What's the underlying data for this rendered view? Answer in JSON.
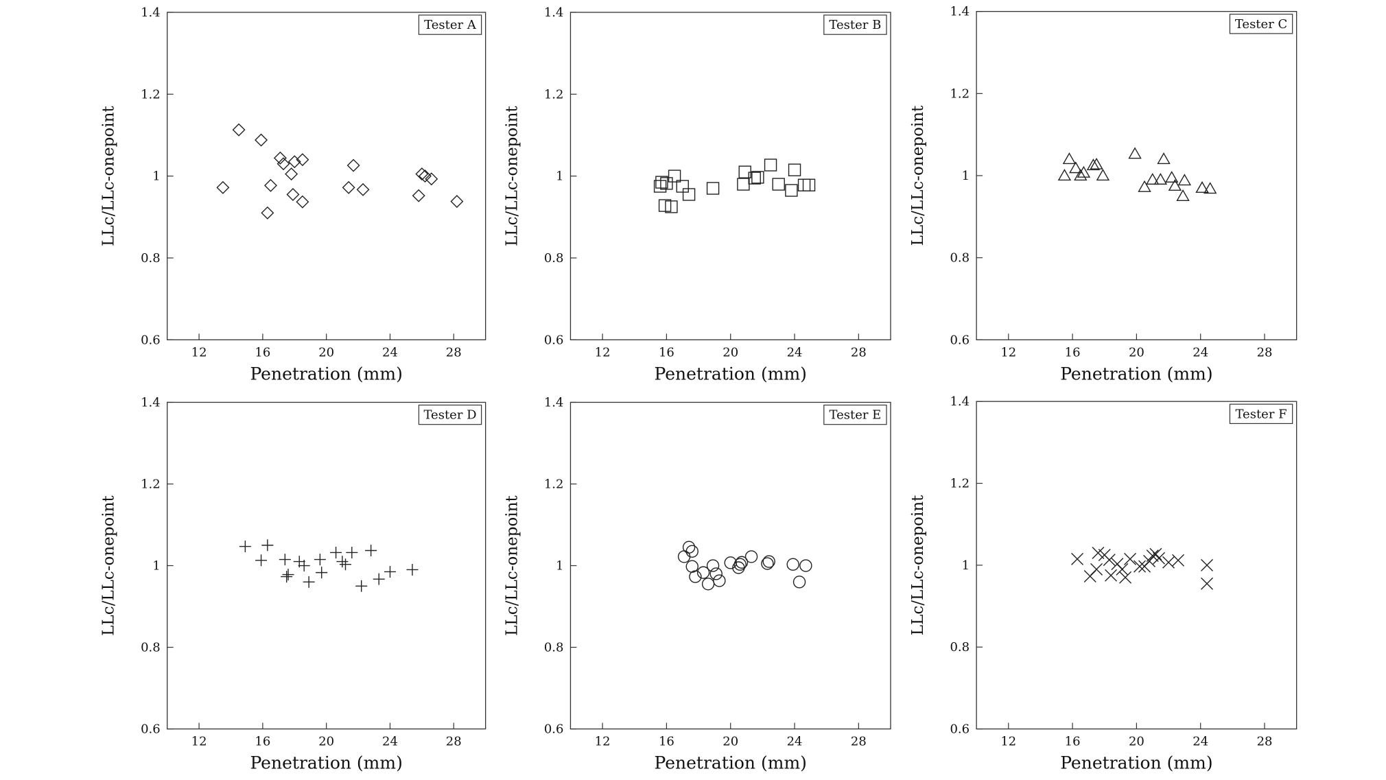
{
  "chart_data": [
    {
      "type": "scatter",
      "legend": "Tester A",
      "marker": "diamond",
      "xlabel": "Penetration (mm)",
      "ylabel": "LLc/LLc-onepoint",
      "xlim": [
        10,
        30
      ],
      "ylim": [
        0.6,
        1.4
      ],
      "xticks": [
        "12",
        "16",
        "20",
        "24",
        "28"
      ],
      "yticks": [
        "0.6",
        "0.8",
        "1",
        "1.2",
        "1.4"
      ],
      "points": [
        {
          "x": 13.5,
          "y": 0.972
        },
        {
          "x": 14.5,
          "y": 1.113
        },
        {
          "x": 15.9,
          "y": 1.088
        },
        {
          "x": 16.3,
          "y": 0.91
        },
        {
          "x": 16.5,
          "y": 0.977
        },
        {
          "x": 17.1,
          "y": 1.044
        },
        {
          "x": 17.3,
          "y": 1.03
        },
        {
          "x": 17.8,
          "y": 1.005
        },
        {
          "x": 17.9,
          "y": 0.955
        },
        {
          "x": 18.0,
          "y": 1.035
        },
        {
          "x": 18.5,
          "y": 1.04
        },
        {
          "x": 18.5,
          "y": 0.937
        },
        {
          "x": 21.4,
          "y": 0.972
        },
        {
          "x": 21.7,
          "y": 1.026
        },
        {
          "x": 22.3,
          "y": 0.967
        },
        {
          "x": 25.8,
          "y": 0.952
        },
        {
          "x": 26.0,
          "y": 1.005
        },
        {
          "x": 26.2,
          "y": 1.0
        },
        {
          "x": 26.6,
          "y": 0.993
        },
        {
          "x": 28.2,
          "y": 0.938
        }
      ]
    },
    {
      "type": "scatter",
      "legend": "Tester B",
      "marker": "square",
      "xlabel": "Penetration (mm)",
      "ylabel": "LLc/LLc-onepoint",
      "xlim": [
        10,
        30
      ],
      "ylim": [
        0.6,
        1.4
      ],
      "xticks": [
        "12",
        "16",
        "20",
        "24",
        "28"
      ],
      "yticks": [
        "0.6",
        "0.8",
        "1",
        "1.2",
        "1.4"
      ],
      "points": [
        {
          "x": 15.6,
          "y": 0.975
        },
        {
          "x": 15.7,
          "y": 0.985
        },
        {
          "x": 15.9,
          "y": 0.928
        },
        {
          "x": 16.0,
          "y": 0.982
        },
        {
          "x": 16.3,
          "y": 0.925
        },
        {
          "x": 16.5,
          "y": 1.0
        },
        {
          "x": 17.0,
          "y": 0.975
        },
        {
          "x": 17.4,
          "y": 0.955
        },
        {
          "x": 18.9,
          "y": 0.97
        },
        {
          "x": 20.8,
          "y": 0.98
        },
        {
          "x": 20.9,
          "y": 1.01
        },
        {
          "x": 21.5,
          "y": 0.995
        },
        {
          "x": 21.7,
          "y": 0.997
        },
        {
          "x": 22.5,
          "y": 1.027
        },
        {
          "x": 23.0,
          "y": 0.98
        },
        {
          "x": 23.8,
          "y": 0.965
        },
        {
          "x": 24.0,
          "y": 1.015
        },
        {
          "x": 24.6,
          "y": 0.978
        },
        {
          "x": 24.9,
          "y": 0.978
        }
      ]
    },
    {
      "type": "scatter",
      "legend": "Tester C",
      "marker": "triangle",
      "xlabel": "Penetration (mm)",
      "ylabel": "LLc/LLc-onepoint",
      "xlim": [
        10,
        30
      ],
      "ylim": [
        0.6,
        1.4
      ],
      "xticks": [
        "12",
        "16",
        "20",
        "24",
        "28"
      ],
      "yticks": [
        "0.6",
        "0.8",
        "1",
        "1.2",
        "1.4"
      ],
      "points": [
        {
          "x": 15.5,
          "y": 1.0
        },
        {
          "x": 15.8,
          "y": 1.04
        },
        {
          "x": 16.2,
          "y": 1.018
        },
        {
          "x": 16.5,
          "y": 1.0
        },
        {
          "x": 16.7,
          "y": 1.007
        },
        {
          "x": 17.3,
          "y": 1.025
        },
        {
          "x": 17.5,
          "y": 1.027
        },
        {
          "x": 17.9,
          "y": 1.0
        },
        {
          "x": 19.9,
          "y": 1.053
        },
        {
          "x": 20.5,
          "y": 0.972
        },
        {
          "x": 21.0,
          "y": 0.99
        },
        {
          "x": 21.5,
          "y": 0.99
        },
        {
          "x": 21.7,
          "y": 1.04
        },
        {
          "x": 22.2,
          "y": 0.995
        },
        {
          "x": 22.4,
          "y": 0.975
        },
        {
          "x": 22.9,
          "y": 0.95
        },
        {
          "x": 23.0,
          "y": 0.988
        },
        {
          "x": 24.1,
          "y": 0.97
        },
        {
          "x": 24.6,
          "y": 0.968
        }
      ]
    },
    {
      "type": "scatter",
      "legend": "Tester D",
      "marker": "plus",
      "xlabel": "Penetration (mm)",
      "ylabel": "LLc/LLc-onepoint",
      "xlim": [
        10,
        30
      ],
      "ylim": [
        0.6,
        1.4
      ],
      "xticks": [
        "12",
        "16",
        "20",
        "24",
        "28"
      ],
      "yticks": [
        "0.6",
        "0.8",
        "1",
        "1.2",
        "1.4"
      ],
      "points": [
        {
          "x": 14.9,
          "y": 1.047
        },
        {
          "x": 15.9,
          "y": 1.013
        },
        {
          "x": 16.3,
          "y": 1.05
        },
        {
          "x": 17.4,
          "y": 1.015
        },
        {
          "x": 17.5,
          "y": 0.973
        },
        {
          "x": 17.6,
          "y": 0.978
        },
        {
          "x": 18.3,
          "y": 1.01
        },
        {
          "x": 18.6,
          "y": 1.0
        },
        {
          "x": 18.9,
          "y": 0.96
        },
        {
          "x": 19.6,
          "y": 1.015
        },
        {
          "x": 19.7,
          "y": 0.983
        },
        {
          "x": 20.6,
          "y": 1.032
        },
        {
          "x": 21.0,
          "y": 1.01
        },
        {
          "x": 21.2,
          "y": 1.003
        },
        {
          "x": 21.6,
          "y": 1.032
        },
        {
          "x": 22.2,
          "y": 0.95
        },
        {
          "x": 22.8,
          "y": 1.037
        },
        {
          "x": 23.3,
          "y": 0.967
        },
        {
          "x": 24.0,
          "y": 0.985
        },
        {
          "x": 25.4,
          "y": 0.99
        }
      ]
    },
    {
      "type": "scatter",
      "legend": "Tester E",
      "marker": "circle",
      "xlabel": "Penetration (mm)",
      "ylabel": "LLc/LLc-onepoint",
      "xlim": [
        10,
        30
      ],
      "ylim": [
        0.6,
        1.4
      ],
      "xticks": [
        "12",
        "16",
        "20",
        "24",
        "28"
      ],
      "yticks": [
        "0.6",
        "0.8",
        "1",
        "1.2",
        "1.4"
      ],
      "points": [
        {
          "x": 17.1,
          "y": 1.022
        },
        {
          "x": 17.4,
          "y": 1.045
        },
        {
          "x": 17.6,
          "y": 1.035
        },
        {
          "x": 17.6,
          "y": 0.998
        },
        {
          "x": 17.8,
          "y": 0.973
        },
        {
          "x": 18.3,
          "y": 0.983
        },
        {
          "x": 18.6,
          "y": 0.955
        },
        {
          "x": 18.9,
          "y": 1.0
        },
        {
          "x": 19.1,
          "y": 0.98
        },
        {
          "x": 19.3,
          "y": 0.963
        },
        {
          "x": 20.0,
          "y": 1.007
        },
        {
          "x": 20.5,
          "y": 0.995
        },
        {
          "x": 20.6,
          "y": 1.003
        },
        {
          "x": 20.7,
          "y": 1.008
        },
        {
          "x": 21.3,
          "y": 1.022
        },
        {
          "x": 22.3,
          "y": 1.005
        },
        {
          "x": 22.4,
          "y": 1.01
        },
        {
          "x": 23.9,
          "y": 1.003
        },
        {
          "x": 24.3,
          "y": 0.96
        },
        {
          "x": 24.7,
          "y": 1.0
        }
      ]
    },
    {
      "type": "scatter",
      "legend": "Tester F",
      "marker": "cross",
      "xlabel": "Penetration (mm)",
      "ylabel": "LLc/LLc-onepoint",
      "xlim": [
        10,
        30
      ],
      "ylim": [
        0.6,
        1.4
      ],
      "xticks": [
        "12",
        "16",
        "20",
        "24",
        "28"
      ],
      "yticks": [
        "0.6",
        "0.8",
        "1",
        "1.2",
        "1.4"
      ],
      "points": [
        {
          "x": 16.3,
          "y": 1.015
        },
        {
          "x": 17.1,
          "y": 0.973
        },
        {
          "x": 17.5,
          "y": 0.99
        },
        {
          "x": 17.6,
          "y": 1.03
        },
        {
          "x": 18.0,
          "y": 1.025
        },
        {
          "x": 18.3,
          "y": 1.013
        },
        {
          "x": 18.4,
          "y": 0.975
        },
        {
          "x": 18.8,
          "y": 1.003
        },
        {
          "x": 19.1,
          "y": 0.99
        },
        {
          "x": 19.3,
          "y": 0.97
        },
        {
          "x": 19.6,
          "y": 1.015
        },
        {
          "x": 20.2,
          "y": 0.997
        },
        {
          "x": 20.5,
          "y": 0.997
        },
        {
          "x": 20.8,
          "y": 1.01
        },
        {
          "x": 21.0,
          "y": 1.023
        },
        {
          "x": 21.2,
          "y": 1.027
        },
        {
          "x": 21.4,
          "y": 1.017
        },
        {
          "x": 22.0,
          "y": 1.007
        },
        {
          "x": 22.6,
          "y": 1.012
        },
        {
          "x": 24.4,
          "y": 1.0
        },
        {
          "x": 24.4,
          "y": 0.955
        }
      ]
    }
  ]
}
